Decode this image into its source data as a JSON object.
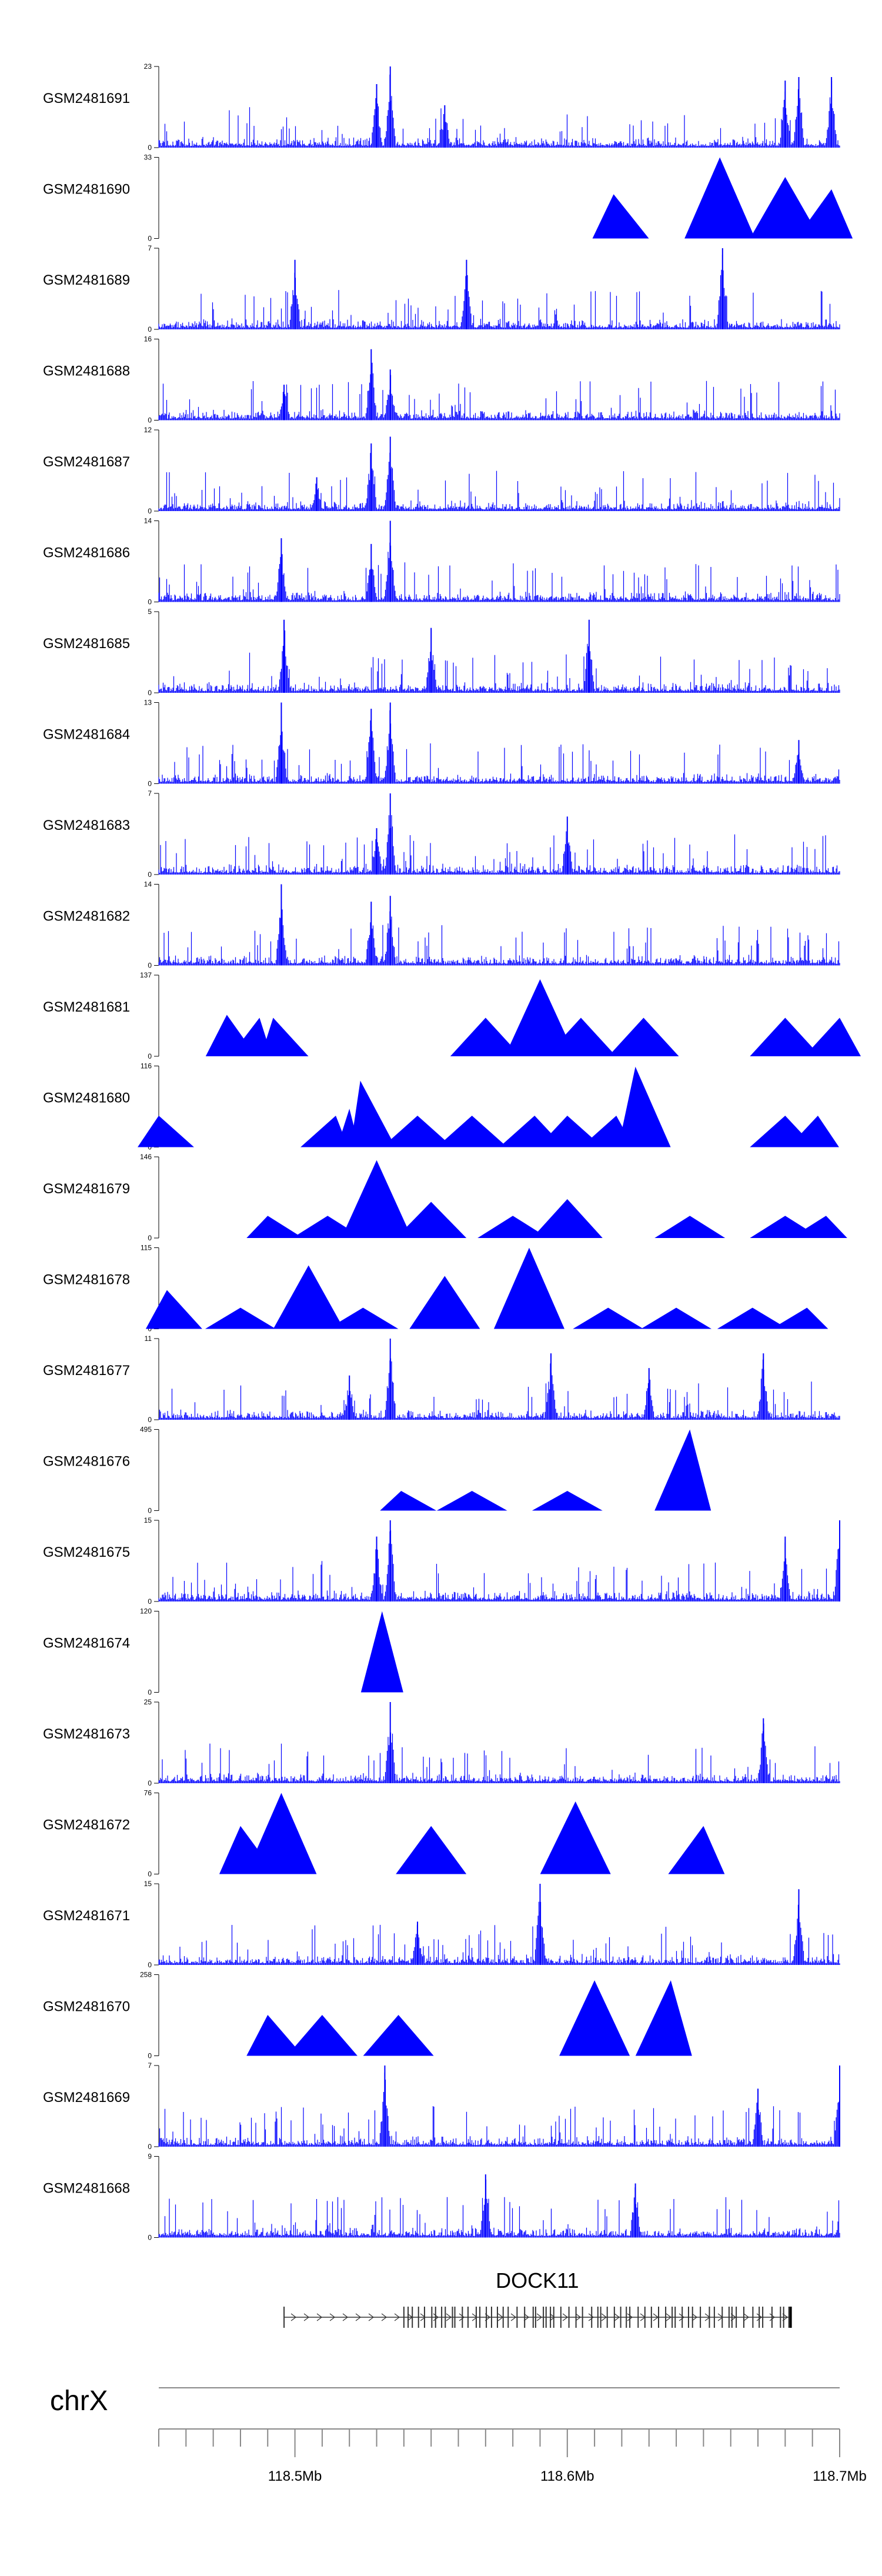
{
  "chart_data": {
    "type": "area",
    "chromosome": "chrX",
    "x_range": [
      118.45,
      118.7
    ],
    "x_unit": "Mb",
    "x_ticks": [
      {
        "value": 118.5,
        "label": "118.5Mb"
      },
      {
        "value": 118.6,
        "label": "118.6Mb"
      },
      {
        "value": 118.7,
        "label": "118.7Mb"
      }
    ],
    "colors": {
      "series": "#0000ff",
      "axis": "#000000",
      "gene": "#333333"
    },
    "tracks": [
      {
        "name": "GSM2481691",
        "ymax": 23,
        "ymin": 0,
        "style": "dense",
        "peaks": [
          [
            118.53,
            18
          ],
          [
            118.535,
            23
          ],
          [
            118.555,
            12
          ],
          [
            118.68,
            19
          ],
          [
            118.685,
            20
          ],
          [
            118.697,
            20
          ]
        ]
      },
      {
        "name": "GSM2481690",
        "ymax": 33,
        "ymin": 0,
        "style": "triangles",
        "peaks": [
          [
            118.617,
            18
          ],
          [
            118.656,
            33
          ],
          [
            118.68,
            25
          ],
          [
            118.697,
            20
          ]
        ]
      },
      {
        "name": "GSM2481689",
        "ymax": 7,
        "ymin": 0,
        "style": "dense",
        "peaks": [
          [
            118.5,
            6
          ],
          [
            118.563,
            6
          ],
          [
            118.657,
            7
          ]
        ]
      },
      {
        "name": "GSM2481688",
        "ymax": 16,
        "ymin": 0,
        "style": "dense",
        "peaks": [
          [
            118.496,
            7
          ],
          [
            118.528,
            14
          ],
          [
            118.535,
            10
          ]
        ]
      },
      {
        "name": "GSM2481687",
        "ymax": 12,
        "ymin": 0,
        "style": "dense",
        "peaks": [
          [
            118.528,
            10
          ],
          [
            118.535,
            11
          ],
          [
            118.508,
            5
          ]
        ]
      },
      {
        "name": "GSM2481686",
        "ymax": 14,
        "ymin": 0,
        "style": "dense",
        "peaks": [
          [
            118.495,
            11
          ],
          [
            118.528,
            10
          ],
          [
            118.535,
            14
          ]
        ]
      },
      {
        "name": "GSM2481685",
        "ymax": 5,
        "ymin": 0,
        "style": "dense",
        "peaks": [
          [
            118.496,
            4.5
          ],
          [
            118.608,
            4.5
          ],
          [
            118.55,
            4
          ]
        ]
      },
      {
        "name": "GSM2481684",
        "ymax": 13,
        "ymin": 0,
        "style": "dense",
        "peaks": [
          [
            118.495,
            13
          ],
          [
            118.528,
            12
          ],
          [
            118.535,
            13
          ],
          [
            118.685,
            7
          ]
        ]
      },
      {
        "name": "GSM2481683",
        "ymax": 7,
        "ymin": 0,
        "style": "dense",
        "peaks": [
          [
            118.53,
            4
          ],
          [
            118.535,
            7
          ],
          [
            118.6,
            5
          ]
        ]
      },
      {
        "name": "GSM2481682",
        "ymax": 14,
        "ymin": 0,
        "style": "dense",
        "peaks": [
          [
            118.495,
            14
          ],
          [
            118.528,
            11
          ],
          [
            118.535,
            12
          ]
        ]
      },
      {
        "name": "GSM2481681",
        "ymax": 137,
        "ymin": 0,
        "style": "triangles",
        "peaks": [
          [
            118.475,
            70
          ],
          [
            118.487,
            65
          ],
          [
            118.492,
            65
          ],
          [
            118.57,
            65
          ],
          [
            118.59,
            130
          ],
          [
            118.605,
            65
          ],
          [
            118.628,
            65
          ],
          [
            118.68,
            65
          ],
          [
            118.7,
            65
          ]
        ]
      },
      {
        "name": "GSM2481680",
        "ymax": 116,
        "ymin": 0,
        "style": "triangles",
        "peaks": [
          [
            118.45,
            45
          ],
          [
            118.515,
            45
          ],
          [
            118.524,
            95
          ],
          [
            118.52,
            55
          ],
          [
            118.545,
            45
          ],
          [
            118.565,
            45
          ],
          [
            118.588,
            45
          ],
          [
            118.6,
            45
          ],
          [
            118.618,
            45
          ],
          [
            118.625,
            115
          ],
          [
            118.68,
            45
          ],
          [
            118.692,
            45
          ]
        ]
      },
      {
        "name": "GSM2481679",
        "ymax": 146,
        "ymin": 0,
        "style": "triangles",
        "peaks": [
          [
            118.49,
            40
          ],
          [
            118.512,
            40
          ],
          [
            118.53,
            140
          ],
          [
            118.55,
            65
          ],
          [
            118.58,
            40
          ],
          [
            118.6,
            70
          ],
          [
            118.645,
            40
          ],
          [
            118.68,
            40
          ],
          [
            118.695,
            40
          ]
        ]
      },
      {
        "name": "GSM2481678",
        "ymax": 115,
        "ymin": 0,
        "style": "triangles",
        "peaks": [
          [
            118.453,
            55
          ],
          [
            118.48,
            30
          ],
          [
            118.505,
            90
          ],
          [
            118.525,
            30
          ],
          [
            118.555,
            75
          ],
          [
            118.586,
            115
          ],
          [
            118.615,
            30
          ],
          [
            118.64,
            30
          ],
          [
            118.668,
            30
          ],
          [
            118.688,
            30
          ]
        ]
      },
      {
        "name": "GSM2481677",
        "ymax": 11,
        "ymin": 0,
        "style": "dense",
        "peaks": [
          [
            118.535,
            11
          ],
          [
            118.52,
            6
          ],
          [
            118.594,
            9
          ],
          [
            118.63,
            7
          ],
          [
            118.672,
            9
          ]
        ]
      },
      {
        "name": "GSM2481676",
        "ymax": 495,
        "ymin": 0,
        "style": "triangles",
        "peaks": [
          [
            118.539,
            120
          ],
          [
            118.565,
            120
          ],
          [
            118.6,
            120
          ],
          [
            118.645,
            495
          ]
        ]
      },
      {
        "name": "GSM2481675",
        "ymax": 15,
        "ymin": 0,
        "style": "dense",
        "peaks": [
          [
            118.535,
            15
          ],
          [
            118.53,
            12
          ],
          [
            118.68,
            12
          ],
          [
            118.7,
            15
          ]
        ]
      },
      {
        "name": "GSM2481674",
        "ymax": 120,
        "ymin": 0,
        "style": "triangles",
        "peaks": [
          [
            118.532,
            120
          ]
        ]
      },
      {
        "name": "GSM2481673",
        "ymax": 25,
        "ymin": 0,
        "style": "dense",
        "peaks": [
          [
            118.535,
            25
          ],
          [
            118.672,
            20
          ]
        ]
      },
      {
        "name": "GSM2481672",
        "ymax": 76,
        "ymin": 0,
        "style": "triangles",
        "peaks": [
          [
            118.495,
            76
          ],
          [
            118.603,
            68
          ],
          [
            118.48,
            45
          ],
          [
            118.55,
            45
          ],
          [
            118.65,
            45
          ]
        ]
      },
      {
        "name": "GSM2481671",
        "ymax": 15,
        "ymin": 0,
        "style": "dense",
        "peaks": [
          [
            118.59,
            15
          ],
          [
            118.685,
            14
          ],
          [
            118.545,
            8
          ]
        ]
      },
      {
        "name": "GSM2481670",
        "ymax": 258,
        "ymin": 0,
        "style": "triangles",
        "peaks": [
          [
            118.49,
            130
          ],
          [
            118.51,
            130
          ],
          [
            118.538,
            130
          ],
          [
            118.61,
            240
          ],
          [
            118.638,
            240
          ]
        ]
      },
      {
        "name": "GSM2481669",
        "ymax": 7,
        "ymin": 0,
        "style": "dense",
        "peaks": [
          [
            118.533,
            7
          ],
          [
            118.67,
            5
          ],
          [
            118.7,
            7
          ]
        ]
      },
      {
        "name": "GSM2481668",
        "ymax": 9,
        "ymin": 0,
        "style": "dense",
        "peaks": [
          [
            118.57,
            7
          ],
          [
            118.625,
            6
          ]
        ]
      }
    ],
    "gene": {
      "name": "DOCK11",
      "start": 118.496,
      "end": 118.682,
      "strand": "+",
      "exon_density_start": 118.54
    }
  }
}
